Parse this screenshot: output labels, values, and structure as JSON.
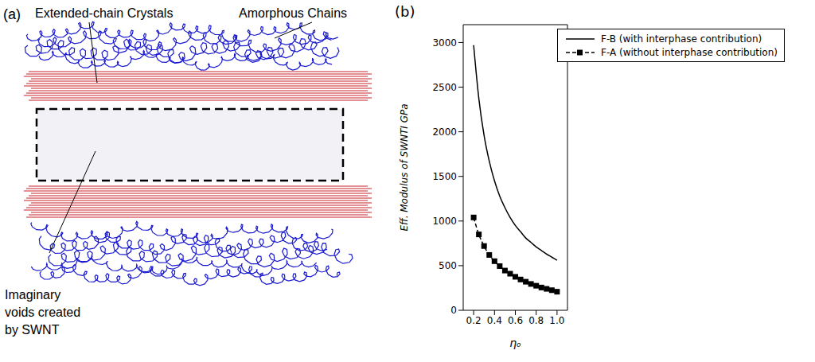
{
  "diagram": {
    "panel_label": "(a)",
    "labels": {
      "crystals": "Extended-chain Crystals",
      "amorphous": "Amorphous Chains",
      "voids": "Imaginary voids created by SWNT"
    }
  },
  "chart_data": {
    "type": "line",
    "panel_label": "(b)",
    "x_label": "ηₒ",
    "y_label": "Eff. Modulus of SWNTI GPa",
    "x": [
      0.2,
      0.25,
      0.3,
      0.35,
      0.4,
      0.45,
      0.5,
      0.55,
      0.6,
      0.65,
      0.7,
      0.75,
      0.8,
      0.85,
      0.9,
      0.95,
      1.0
    ],
    "series": [
      {
        "name": "F-B (with interphase contribution)",
        "color": "#000000",
        "line_style": "solid",
        "values": [
          2970,
          2370,
          1960,
          1670,
          1450,
          1280,
          1150,
          1040,
          950,
          880,
          810,
          760,
          710,
          670,
          630,
          595,
          560
        ]
      },
      {
        "name": "F-A (without interphase contribution)",
        "color": "#000000",
        "line_style": "dashed",
        "marker": "square",
        "values": [
          1040,
          850,
          720,
          620,
          550,
          495,
          445,
          410,
          375,
          345,
          320,
          295,
          275,
          255,
          240,
          225,
          208
        ]
      }
    ],
    "xlim": [
      0.1,
      1.1
    ],
    "xticks": [
      0.2,
      0.4,
      0.6,
      0.8,
      {
        "value": 1,
        "label": "1.0"
      }
    ],
    "ylim": [
      0,
      3200
    ],
    "yticks": [
      0,
      500,
      1000,
      1500,
      2000,
      2500,
      3000
    ],
    "legend": "upper right"
  }
}
